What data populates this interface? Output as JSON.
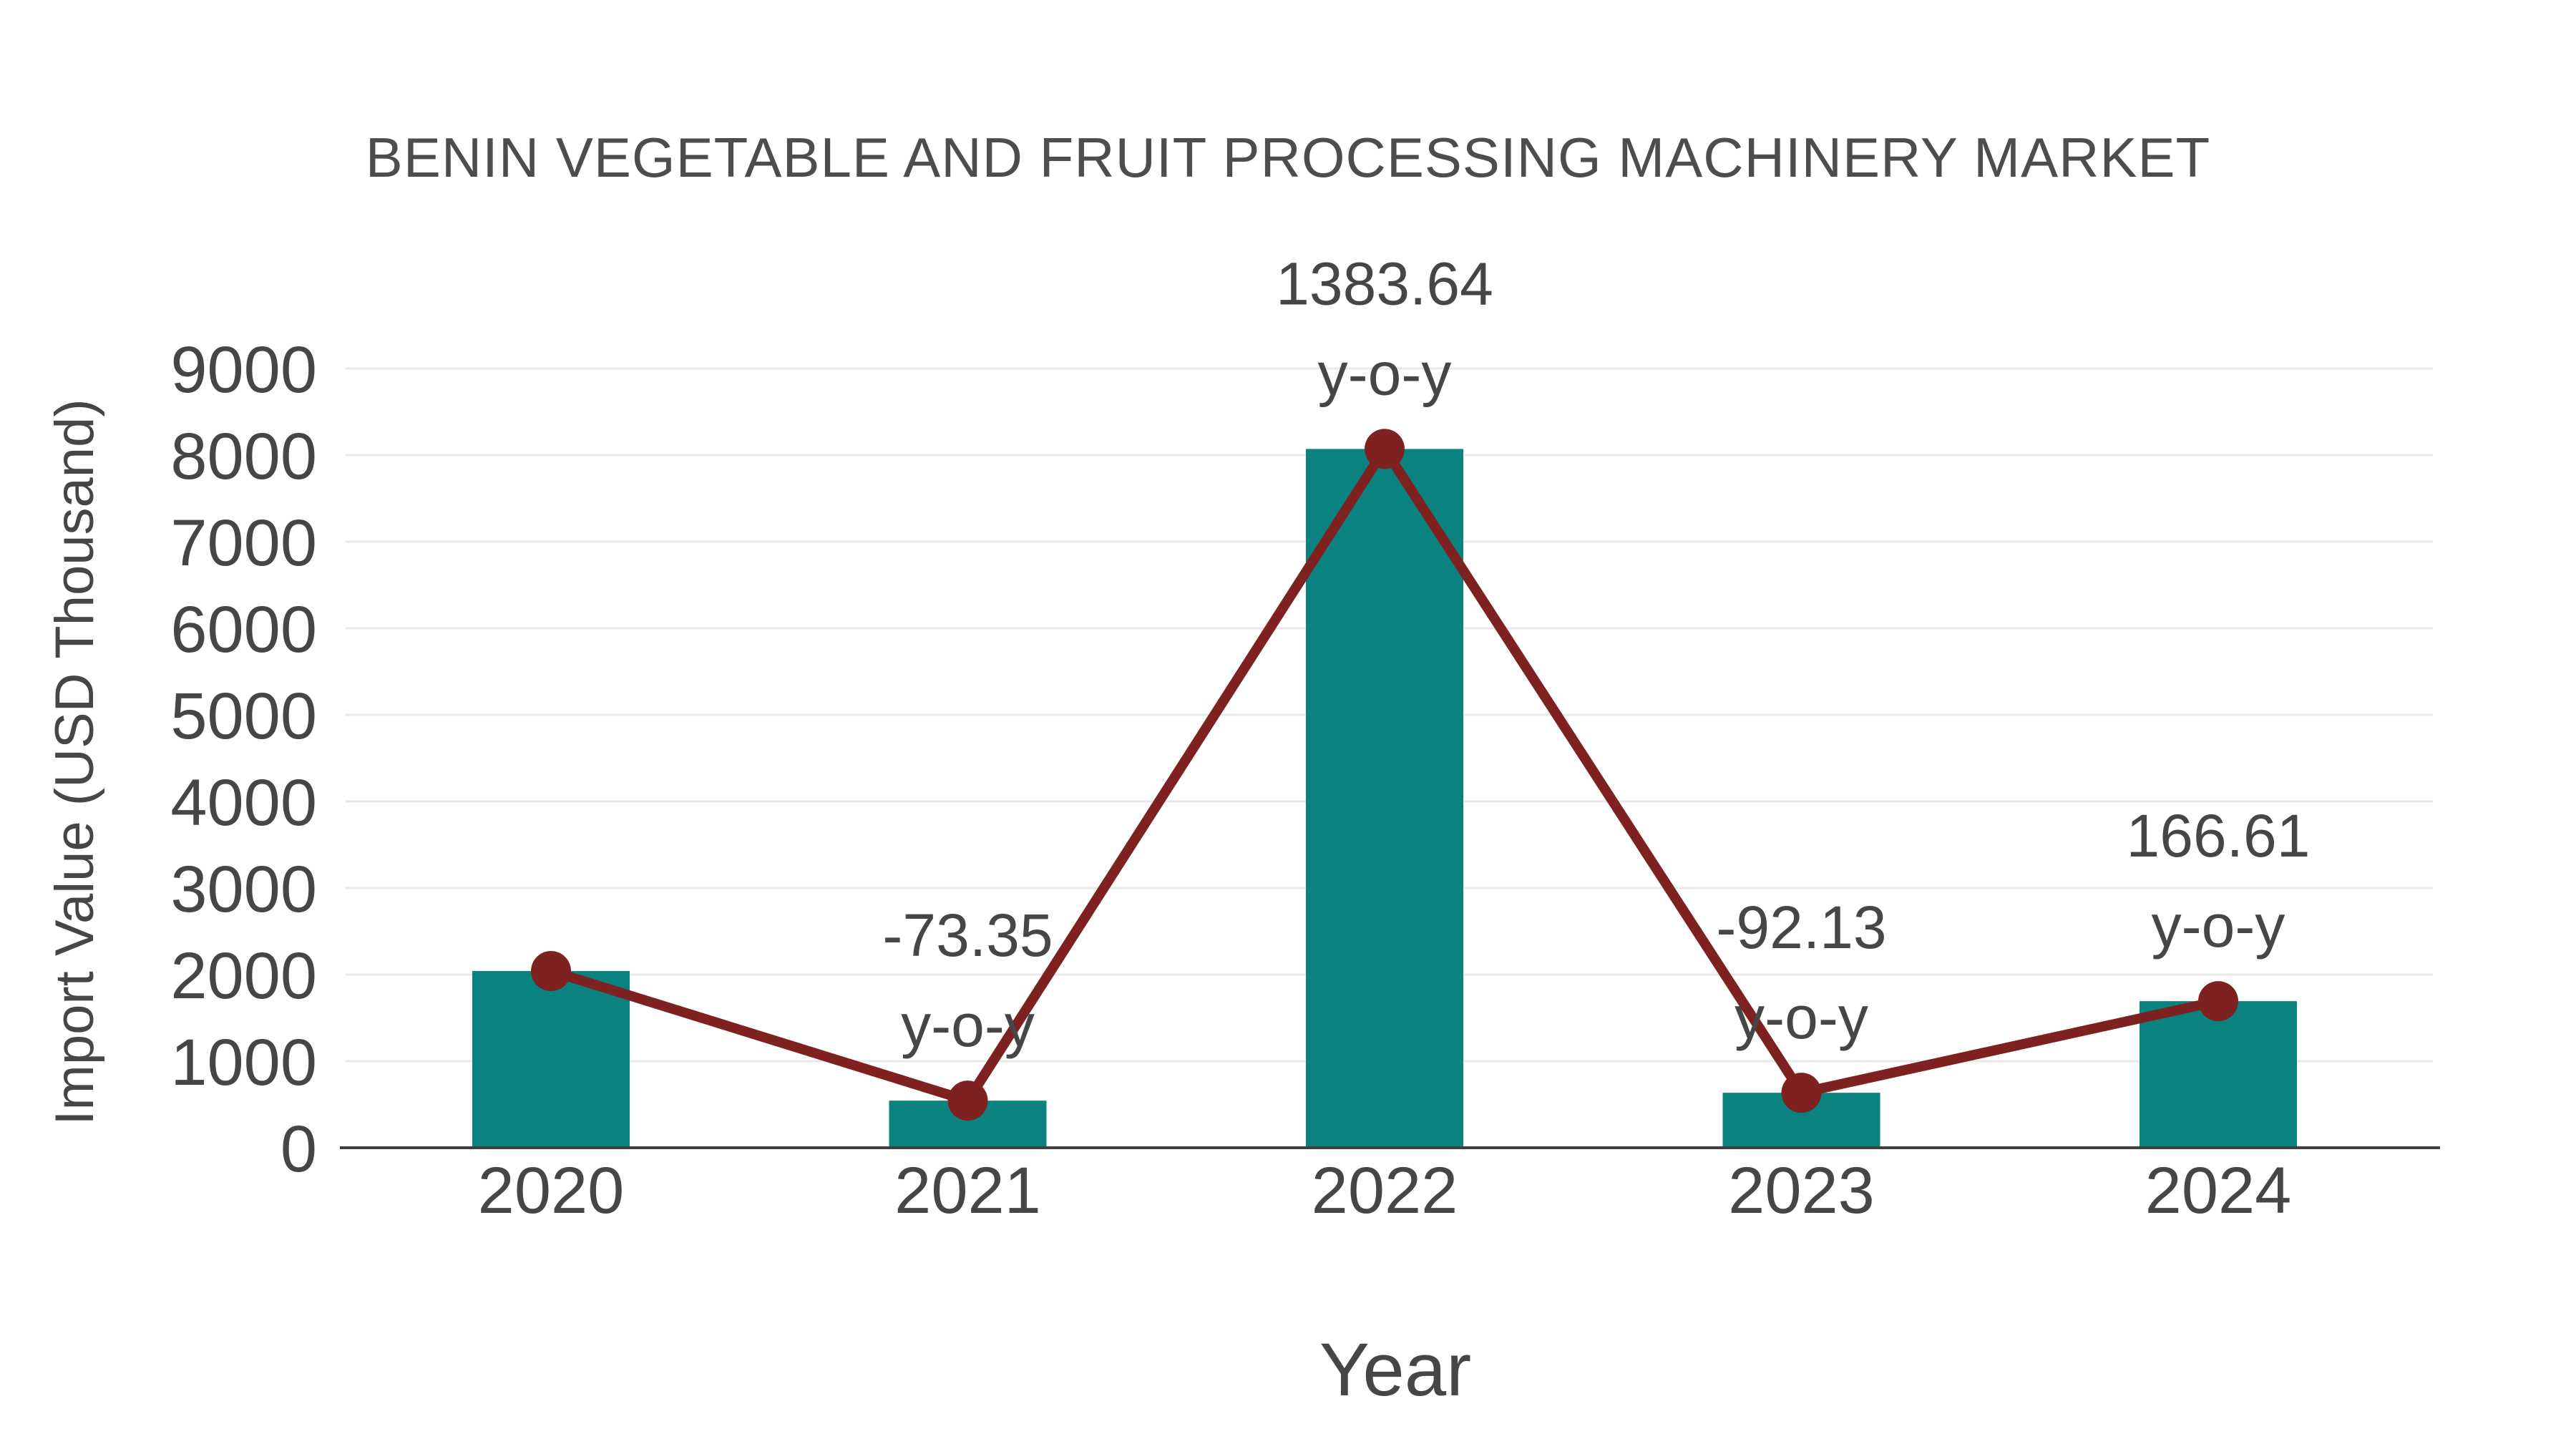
{
  "chart_data": {
    "type": "bar",
    "title": "BENIN VEGETABLE AND FRUIT PROCESSING MACHINERY MARKET",
    "xlabel": "Year",
    "ylabel": "Import Value (USD Thousand)",
    "categories": [
      "2020",
      "2021",
      "2022",
      "2023",
      "2024"
    ],
    "series": [
      {
        "name": "Import Value bars",
        "type": "bar",
        "values": [
          2041,
          544,
          8071,
          635,
          1693
        ]
      },
      {
        "name": "Import Value trend line",
        "type": "line",
        "values": [
          2041,
          544,
          8071,
          635,
          1693
        ]
      }
    ],
    "annotations": [
      {
        "category": "2021",
        "value": "-73.35",
        "suffix": "y-o-y"
      },
      {
        "category": "2022",
        "value": "1383.64",
        "suffix": "y-o-y"
      },
      {
        "category": "2023",
        "value": "-92.13",
        "suffix": "y-o-y"
      },
      {
        "category": "2024",
        "value": "166.61",
        "suffix": "y-o-y"
      }
    ],
    "ylim": [
      0,
      9000
    ],
    "yticks": [
      0,
      1000,
      2000,
      3000,
      4000,
      5000,
      6000,
      7000,
      8000,
      9000
    ],
    "grid": true,
    "legend_position": "none"
  },
  "colors": {
    "bar": "#0a827f",
    "line": "#7d2220",
    "marker": "#7d2220",
    "grid": "#e9e9e9",
    "axis": "#3f3f3f",
    "text": "#464646"
  }
}
